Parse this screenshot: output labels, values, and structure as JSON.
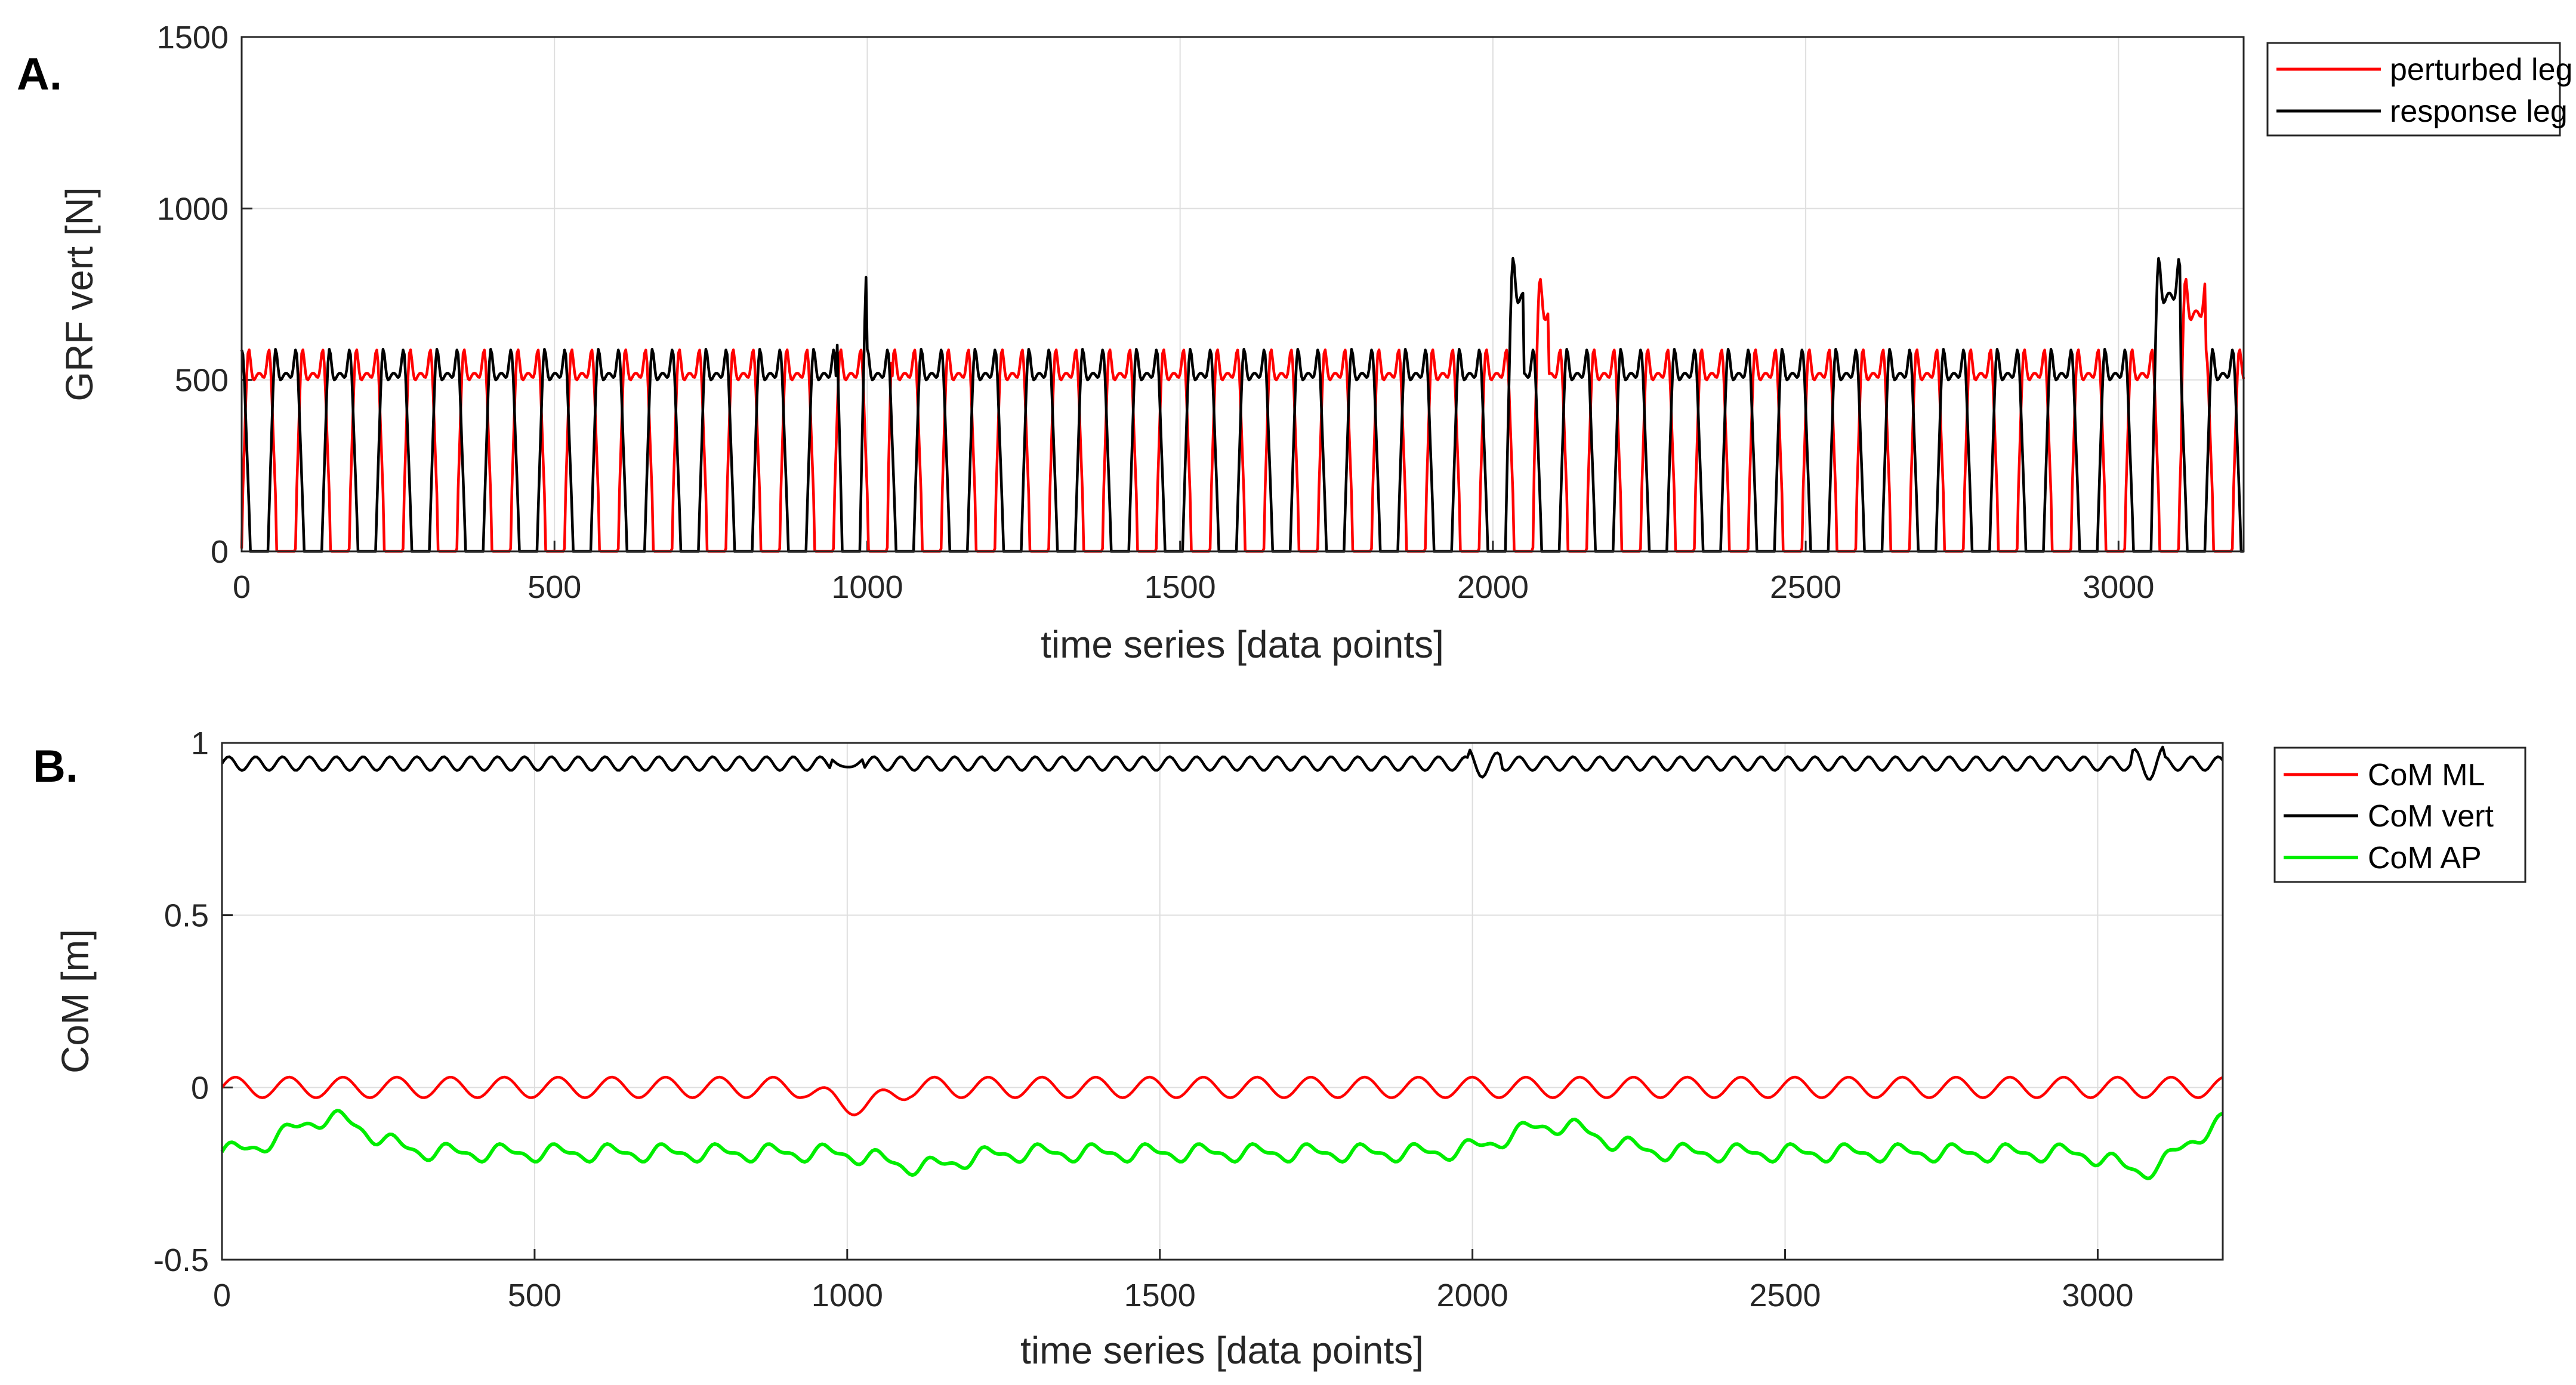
{
  "chart_data": [
    {
      "panel_label": "A.",
      "type": "line",
      "xlabel": "time series [data points]",
      "ylabel": "GRF vert [N]",
      "xlim": [
        0,
        3200
      ],
      "ylim": [
        0,
        1500
      ],
      "xticks": [
        0,
        500,
        1000,
        1500,
        2000,
        2500,
        3000
      ],
      "yticks": [
        0,
        500,
        1000,
        1500
      ],
      "grid": true,
      "legend_position": "outside-top-right",
      "perturbation_points": [
        980,
        2030,
        3080
      ],
      "series": [
        {
          "name": "perturbed leg",
          "color": "#ff0000",
          "role": "perturbed",
          "step_peaks": [
            760,
            930,
            1010,
            1030,
            830,
            890
          ],
          "stance_level": 500
        },
        {
          "name": "response leg",
          "color": "#000000",
          "role": "response",
          "step_peaks": [
            920,
            1020,
            1170,
            1280
          ],
          "stance_level": 500
        }
      ]
    },
    {
      "panel_label": "B.",
      "type": "line",
      "xlabel": "time series [data points]",
      "ylabel": "CoM [m]",
      "xlim": [
        0,
        3200
      ],
      "ylim": [
        -0.5,
        1
      ],
      "xticks": [
        0,
        500,
        1000,
        1500,
        2000,
        2500,
        3000
      ],
      "yticks": [
        -0.5,
        0,
        0.5,
        1
      ],
      "grid": true,
      "legend_position": "outside-top-right",
      "series": [
        {
          "name": "CoM ML",
          "color": "#ff0000",
          "role": "ml",
          "mean": 0.0,
          "amplitude": 0.03
        },
        {
          "name": "CoM vert",
          "color": "#000000",
          "role": "vert",
          "mean": 0.94,
          "amplitude": 0.02
        },
        {
          "name": "CoM AP",
          "color": "#00ee00",
          "role": "ap",
          "mean": -0.19,
          "amplitude": 0.02
        }
      ]
    }
  ]
}
